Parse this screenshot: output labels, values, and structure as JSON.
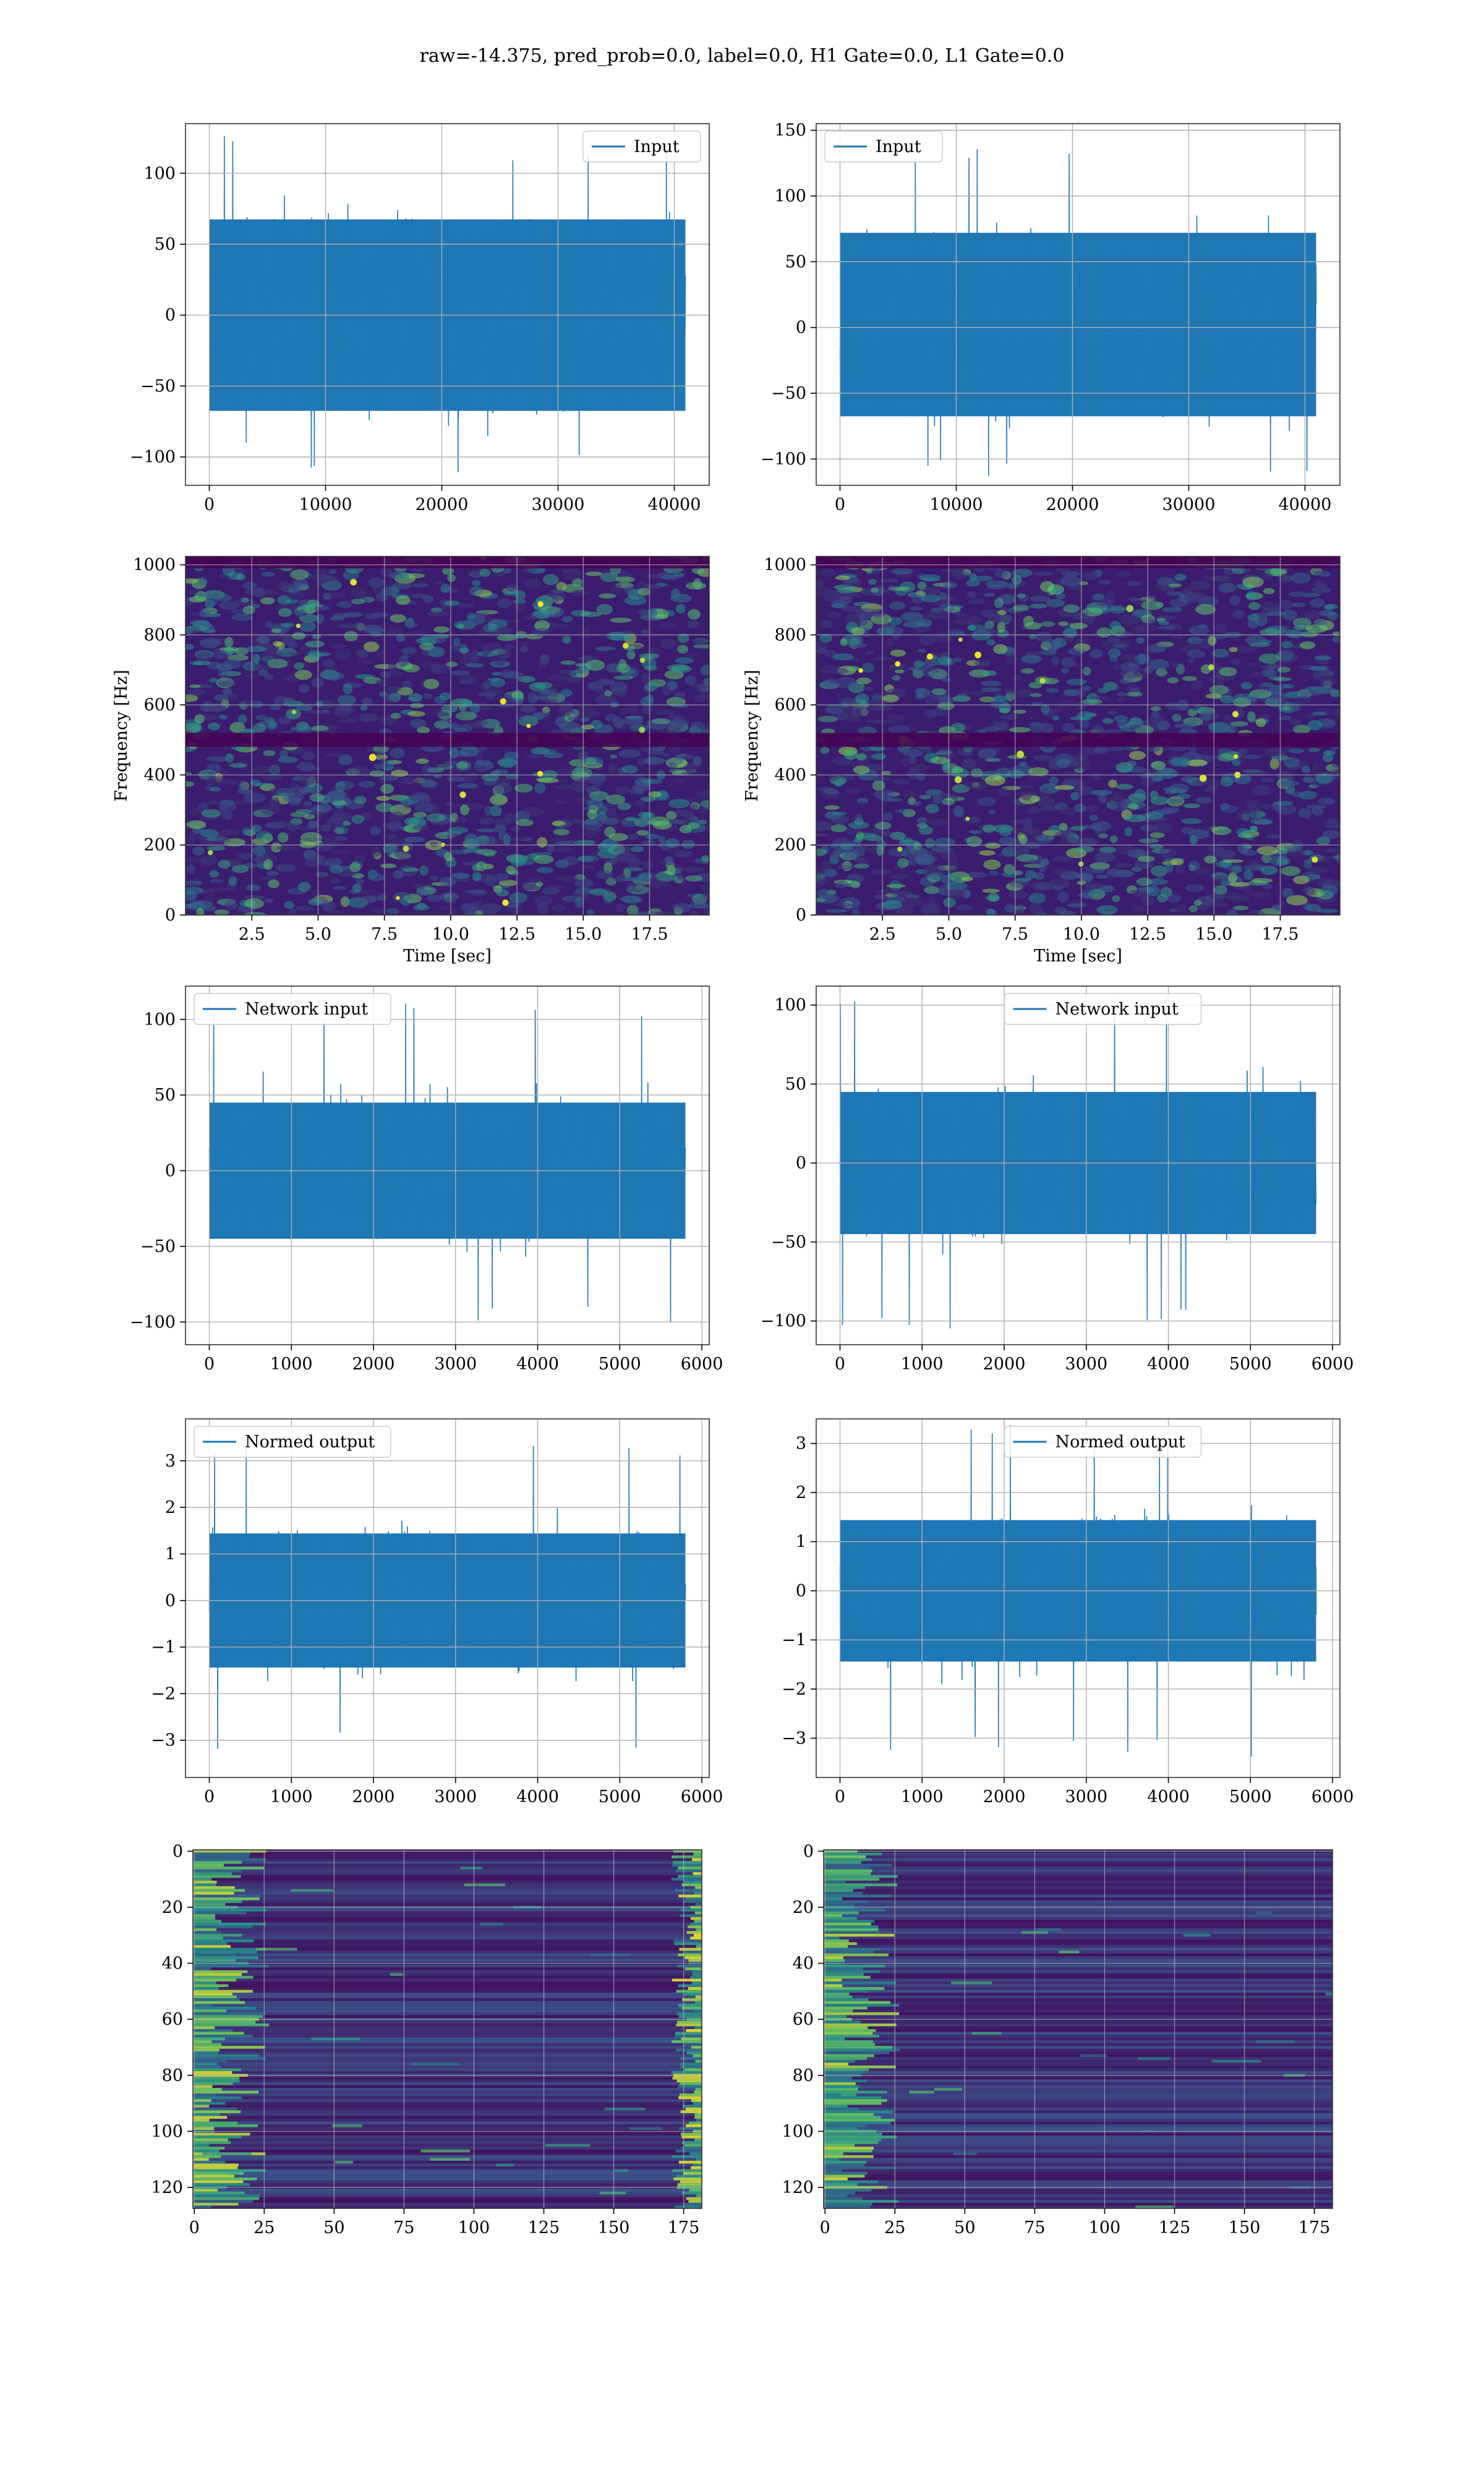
{
  "suptitle": "raw=-14.375, pred_prob=0.0, label=0.0, H1 Gate=0.0, L1 Gate=0.0",
  "colors": {
    "line": "#1f77b4",
    "grid": "#b0b0b0",
    "viridis_dark": "#440154",
    "viridis_bg": "#3b1c6e",
    "viridis_mid": "#21918c",
    "viridis_bright": "#fde725"
  },
  "chart_data": [
    {
      "id": "row1-left",
      "type": "line",
      "legend": "Input",
      "legend_loc": "upper right",
      "series": [
        {
          "name": "Input",
          "kind": "noise",
          "n_points": 40960,
          "x_range": [
            0,
            40960
          ],
          "typical_envelope": [
            -75,
            75
          ],
          "extremes": [
            -115,
            127
          ]
        }
      ],
      "xlim": [
        -2048,
        43008
      ],
      "ylim": [
        -120,
        135
      ],
      "xticks": [
        0,
        10000,
        20000,
        30000,
        40000
      ],
      "xtick_labels": [
        "0",
        "10000",
        "20000",
        "30000",
        "40000"
      ],
      "yticks": [
        -100,
        -50,
        0,
        50,
        100
      ],
      "ytick_labels": [
        "−100",
        "−50",
        "0",
        "50",
        "100"
      ],
      "xlabel": "",
      "ylabel": "",
      "grid": true
    },
    {
      "id": "row1-right",
      "type": "line",
      "legend": "Input",
      "legend_loc": "upper left",
      "series": [
        {
          "name": "Input",
          "kind": "noise",
          "n_points": 40960,
          "x_range": [
            0,
            40960
          ],
          "typical_envelope": [
            -75,
            80
          ],
          "extremes": [
            -115,
            143
          ]
        }
      ],
      "xlim": [
        -2048,
        43008
      ],
      "ylim": [
        -120,
        155
      ],
      "xticks": [
        0,
        10000,
        20000,
        30000,
        40000
      ],
      "xtick_labels": [
        "0",
        "10000",
        "20000",
        "30000",
        "40000"
      ],
      "yticks": [
        -100,
        -50,
        0,
        50,
        100,
        150
      ],
      "ytick_labels": [
        "−100",
        "−50",
        "0",
        "50",
        "100",
        "150"
      ],
      "xlabel": "",
      "ylabel": "",
      "grid": true
    },
    {
      "id": "row2-left",
      "type": "heatmap",
      "colormap": "viridis",
      "description_values": {
        "x_extent": [
          0,
          19.75
        ],
        "y_extent": [
          0,
          1024
        ],
        "dark_band_hz": [
          480,
          520
        ]
      },
      "xlim": [
        0,
        19.75
      ],
      "ylim": [
        0,
        1024
      ],
      "xticks": [
        2.5,
        5.0,
        7.5,
        10.0,
        12.5,
        15.0,
        17.5
      ],
      "xtick_labels": [
        "2.5",
        "5.0",
        "7.5",
        "10.0",
        "12.5",
        "15.0",
        "17.5"
      ],
      "yticks": [
        0,
        200,
        400,
        600,
        800,
        1000
      ],
      "ytick_labels": [
        "0",
        "200",
        "400",
        "600",
        "800",
        "1000"
      ],
      "xlabel": "Time [sec]",
      "ylabel": "Frequency [Hz]",
      "grid": true
    },
    {
      "id": "row2-right",
      "type": "heatmap",
      "colormap": "viridis",
      "description_values": {
        "x_extent": [
          0,
          19.75
        ],
        "y_extent": [
          0,
          1024
        ],
        "dark_band_hz": [
          480,
          520
        ]
      },
      "xlim": [
        0,
        19.75
      ],
      "ylim": [
        0,
        1024
      ],
      "xticks": [
        2.5,
        5.0,
        7.5,
        10.0,
        12.5,
        15.0,
        17.5
      ],
      "xtick_labels": [
        "2.5",
        "5.0",
        "7.5",
        "10.0",
        "12.5",
        "15.0",
        "17.5"
      ],
      "yticks": [
        0,
        200,
        400,
        600,
        800,
        1000
      ],
      "ytick_labels": [
        "0",
        "200",
        "400",
        "600",
        "800",
        "1000"
      ],
      "xlabel": "Time [sec]",
      "ylabel": "Frequency [Hz]",
      "grid": true
    },
    {
      "id": "row3-left",
      "type": "line",
      "legend": "Network input",
      "legend_loc": "upper left",
      "series": [
        {
          "name": "Network input",
          "kind": "noise",
          "n_points": 5800,
          "x_range": [
            0,
            5800
          ],
          "typical_envelope": [
            -50,
            50
          ],
          "extremes": [
            -103,
            111
          ]
        }
      ],
      "xlim": [
        -290,
        6090
      ],
      "ylim": [
        -115,
        122
      ],
      "xticks": [
        0,
        1000,
        2000,
        3000,
        4000,
        5000,
        6000
      ],
      "xtick_labels": [
        "0",
        "1000",
        "2000",
        "3000",
        "4000",
        "5000",
        "6000"
      ],
      "yticks": [
        -100,
        -50,
        0,
        50,
        100
      ],
      "ytick_labels": [
        "−100",
        "−50",
        "0",
        "50",
        "100"
      ],
      "xlabel": "",
      "ylabel": "",
      "grid": true
    },
    {
      "id": "row3-right",
      "type": "line",
      "legend": "Network input",
      "legend_loc": "upper center",
      "series": [
        {
          "name": "Network input",
          "kind": "noise",
          "n_points": 5800,
          "x_range": [
            0,
            5800
          ],
          "typical_envelope": [
            -50,
            50
          ],
          "extremes": [
            -107,
            106
          ]
        }
      ],
      "xlim": [
        -290,
        6090
      ],
      "ylim": [
        -115,
        112
      ],
      "xticks": [
        0,
        1000,
        2000,
        3000,
        4000,
        5000,
        6000
      ],
      "xtick_labels": [
        "0",
        "1000",
        "2000",
        "3000",
        "4000",
        "5000",
        "6000"
      ],
      "yticks": [
        -100,
        -50,
        0,
        50,
        100
      ],
      "ytick_labels": [
        "−100",
        "−50",
        "0",
        "50",
        "100"
      ],
      "xlabel": "",
      "ylabel": "",
      "grid": true
    },
    {
      "id": "row4-left",
      "type": "line",
      "legend": "Normed output",
      "legend_loc": "upper left",
      "series": [
        {
          "name": "Normed output",
          "kind": "noise",
          "n_points": 5800,
          "x_range": [
            0,
            5800
          ],
          "typical_envelope": [
            -1.6,
            1.6
          ],
          "extremes": [
            -3.3,
            3.6
          ]
        }
      ],
      "xlim": [
        -290,
        6090
      ],
      "ylim": [
        -3.8,
        3.9
      ],
      "xticks": [
        0,
        1000,
        2000,
        3000,
        4000,
        5000,
        6000
      ],
      "xtick_labels": [
        "0",
        "1000",
        "2000",
        "3000",
        "4000",
        "5000",
        "6000"
      ],
      "yticks": [
        -3,
        -2,
        -1,
        0,
        1,
        2,
        3
      ],
      "ytick_labels": [
        "−3",
        "−2",
        "−1",
        "0",
        "1",
        "2",
        "3"
      ],
      "xlabel": "",
      "ylabel": "",
      "grid": true
    },
    {
      "id": "row4-right",
      "type": "line",
      "legend": "Normed output",
      "legend_loc": "upper center",
      "series": [
        {
          "name": "Normed output",
          "kind": "noise",
          "n_points": 5800,
          "x_range": [
            0,
            5800
          ],
          "typical_envelope": [
            -1.6,
            1.6
          ],
          "extremes": [
            -3.4,
            3.4
          ]
        }
      ],
      "xlim": [
        -290,
        6090
      ],
      "ylim": [
        -3.8,
        3.5
      ],
      "xticks": [
        0,
        1000,
        2000,
        3000,
        4000,
        5000,
        6000
      ],
      "xtick_labels": [
        "0",
        "1000",
        "2000",
        "3000",
        "4000",
        "5000",
        "6000"
      ],
      "yticks": [
        -3,
        -2,
        -1,
        0,
        1,
        2,
        3
      ],
      "ytick_labels": [
        "−3",
        "−2",
        "−1",
        "0",
        "1",
        "2",
        "3"
      ],
      "xlabel": "",
      "ylabel": "",
      "grid": true
    },
    {
      "id": "row5-left",
      "type": "heatmap",
      "colormap": "viridis",
      "description_values": {
        "cols": 181,
        "rows": 128,
        "bright_edges": [
          "left",
          "right"
        ]
      },
      "xlim": [
        -0.5,
        181.5
      ],
      "ylim": [
        127.5,
        -0.5
      ],
      "xticks": [
        0,
        25,
        50,
        75,
        100,
        125,
        150,
        175
      ],
      "xtick_labels": [
        "0",
        "25",
        "50",
        "75",
        "100",
        "125",
        "150",
        "175"
      ],
      "yticks": [
        0,
        20,
        40,
        60,
        80,
        100,
        120
      ],
      "ytick_labels": [
        "0",
        "20",
        "40",
        "60",
        "80",
        "100",
        "120"
      ],
      "xlabel": "",
      "ylabel": "",
      "grid": true
    },
    {
      "id": "row5-right",
      "type": "heatmap",
      "colormap": "viridis",
      "description_values": {
        "cols": 181,
        "rows": 128,
        "bright_edges": [
          "left"
        ]
      },
      "xlim": [
        -0.5,
        181.5
      ],
      "ylim": [
        127.5,
        -0.5
      ],
      "xticks": [
        0,
        25,
        50,
        75,
        100,
        125,
        150,
        175
      ],
      "xtick_labels": [
        "0",
        "25",
        "50",
        "75",
        "100",
        "125",
        "150",
        "175"
      ],
      "yticks": [
        0,
        20,
        40,
        60,
        80,
        100,
        120
      ],
      "ytick_labels": [
        "0",
        "20",
        "40",
        "60",
        "80",
        "100",
        "120"
      ],
      "xlabel": "",
      "ylabel": "",
      "grid": true
    }
  ]
}
